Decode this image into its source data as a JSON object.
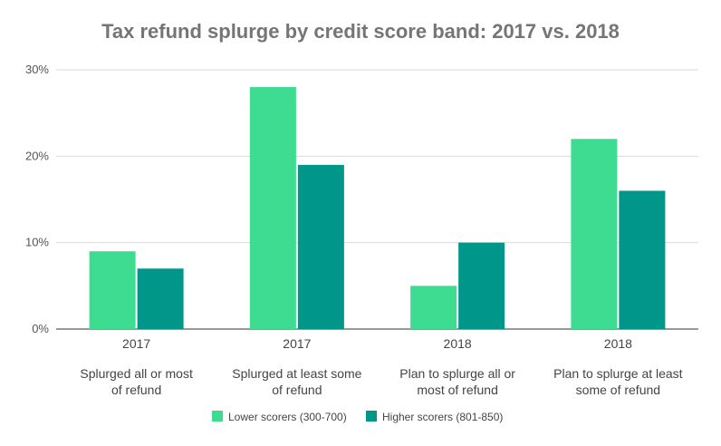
{
  "chart_data": {
    "type": "bar",
    "title": "Tax refund splurge by credit score band: 2017 vs. 2018",
    "categories": [
      {
        "year": "2017",
        "label_lines": [
          "Splurged all or most",
          "of refund"
        ]
      },
      {
        "year": "2017",
        "label_lines": [
          "Splurged at least some",
          "of refund"
        ]
      },
      {
        "year": "2018",
        "label_lines": [
          "Plan to splurge all or",
          "most of refund"
        ]
      },
      {
        "year": "2018",
        "label_lines": [
          "Plan to splurge at least",
          "some of refund"
        ]
      }
    ],
    "series": [
      {
        "name": "Lower scorers (300-700)",
        "color": "#3ddc91",
        "values": [
          9,
          28,
          5,
          22
        ]
      },
      {
        "name": "Higher scorers (801-850)",
        "color": "#00968a",
        "values": [
          7,
          19,
          10,
          16
        ]
      }
    ],
    "yticks": [
      0,
      10,
      20,
      30
    ],
    "ytick_labels": [
      "0%",
      "10%",
      "20%",
      "30%"
    ],
    "ylim": [
      0,
      30
    ],
    "grid": true,
    "legend_position": "bottom",
    "xlabel": "",
    "ylabel": ""
  }
}
